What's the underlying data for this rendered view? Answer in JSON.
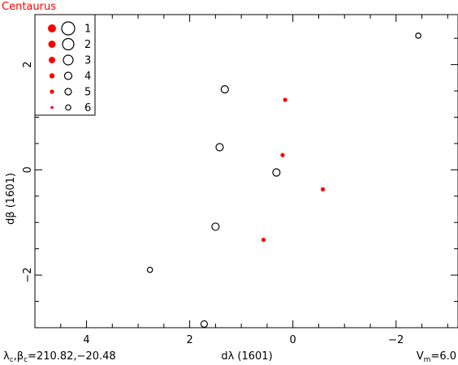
{
  "chart_data": {
    "type": "scatter",
    "title": "Centaurus",
    "xlabel": "dλ (1601)",
    "ylabel": "dβ (1601)",
    "xlim": [
      5.0,
      -3.2
    ],
    "ylim": [
      -3.0,
      2.95
    ],
    "x_ticks": [
      4,
      2,
      0,
      -2
    ],
    "y_ticks": [
      2,
      0,
      -2
    ],
    "x_tick_labels": [
      "4",
      "2",
      "0",
      "−2"
    ],
    "y_tick_labels": [
      "2",
      "0",
      "−2"
    ],
    "footer_left": {
      "lambda": "λ",
      "c1": "c",
      "sep": ",",
      "beta": "β",
      "c2": "c",
      "value": "=210.82,−20.48"
    },
    "footer_right": {
      "v": "V",
      "sub": "m",
      "value": "=6.0"
    },
    "colors": {
      "filled": "#ff0000",
      "open": "#000000",
      "title": "#ff0000"
    },
    "legend": {
      "placement": "top-left",
      "entries": [
        {
          "label": "1",
          "mag": 1
        },
        {
          "label": "2",
          "mag": 2
        },
        {
          "label": "3",
          "mag": 3
        },
        {
          "label": "4",
          "mag": 4
        },
        {
          "label": "5",
          "mag": 5
        },
        {
          "label": "6",
          "mag": 6
        }
      ]
    },
    "series": [
      {
        "marker": "filled",
        "points": [
          {
            "x": 0.15,
            "y": 1.33,
            "mag": 5
          },
          {
            "x": 0.2,
            "y": 0.28,
            "mag": 5
          },
          {
            "x": -0.58,
            "y": -0.37,
            "mag": 5
          },
          {
            "x": 0.57,
            "y": -1.33,
            "mag": 5
          }
        ]
      },
      {
        "marker": "open",
        "points": [
          {
            "x": -2.43,
            "y": 2.55,
            "mag": 6
          },
          {
            "x": 1.32,
            "y": 1.53,
            "mag": 4
          },
          {
            "x": 1.42,
            "y": 0.43,
            "mag": 4
          },
          {
            "x": 0.32,
            "y": -0.05,
            "mag": 4
          },
          {
            "x": 1.5,
            "y": -1.08,
            "mag": 4
          },
          {
            "x": 2.77,
            "y": -1.9,
            "mag": 6
          },
          {
            "x": 1.72,
            "y": -2.93,
            "mag": 5
          }
        ]
      }
    ]
  }
}
